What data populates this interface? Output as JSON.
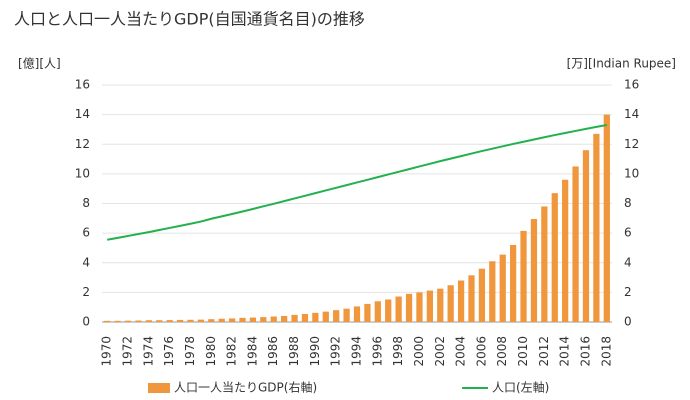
{
  "chart_data": {
    "type": "bar+line",
    "title": "人口と人口一人当たりGDP(自国通貨名目)の推移",
    "y_label": "[億][人]",
    "y2_label": "[万][Indian Rupee]",
    "categories": [
      "1970",
      null,
      "1972",
      null,
      "1974",
      null,
      "1976",
      null,
      "1978",
      null,
      "1980",
      null,
      "1982",
      null,
      "1984",
      null,
      "1986",
      null,
      "1988",
      null,
      "1990",
      null,
      "1992",
      null,
      "1994",
      null,
      "1996",
      null,
      "1998",
      null,
      "2000",
      null,
      "2002",
      null,
      "2004",
      null,
      "2006",
      null,
      "2008",
      null,
      "2010",
      null,
      "2012",
      null,
      "2014",
      null,
      "2016",
      null,
      "2018"
    ],
    "series": [
      {
        "name": "人口一人当たりGDP(右軸)",
        "color": "#f0963c",
        "axis": "y2",
        "kind": "bar",
        "values": [
          0.08,
          0.08,
          0.09,
          0.1,
          0.12,
          0.12,
          0.13,
          0.14,
          0.15,
          0.16,
          0.19,
          0.22,
          0.24,
          0.28,
          0.3,
          0.33,
          0.37,
          0.41,
          0.48,
          0.54,
          0.62,
          0.7,
          0.8,
          0.9,
          1.05,
          1.22,
          1.4,
          1.52,
          1.72,
          1.9,
          2.0,
          2.12,
          2.25,
          2.48,
          2.8,
          3.15,
          3.6,
          4.1,
          4.55,
          5.2,
          6.15,
          6.95,
          7.8,
          8.7,
          9.6,
          10.5,
          11.6,
          12.7,
          14.0
        ]
      },
      {
        "name": "人口(左軸)",
        "color": "#22b14c",
        "axis": "y",
        "kind": "line",
        "values": [
          5.55,
          5.68,
          5.81,
          5.94,
          6.07,
          6.21,
          6.35,
          6.49,
          6.63,
          6.78,
          6.97,
          7.13,
          7.29,
          7.46,
          7.63,
          7.81,
          7.98,
          8.16,
          8.34,
          8.52,
          8.7,
          8.88,
          9.06,
          9.24,
          9.42,
          9.6,
          9.78,
          9.96,
          10.14,
          10.32,
          10.5,
          10.68,
          10.86,
          11.03,
          11.2,
          11.37,
          11.54,
          11.7,
          11.86,
          12.02,
          12.17,
          12.32,
          12.47,
          12.62,
          12.76,
          12.9,
          13.04,
          13.17,
          13.3
        ]
      }
    ],
    "ylim": [
      0,
      16
    ],
    "yticks": [
      0,
      2,
      4,
      6,
      8,
      10,
      12,
      14,
      16
    ],
    "y2lim": [
      0,
      16
    ],
    "y2ticks": [
      0,
      2,
      4,
      6,
      8,
      10,
      12,
      14,
      16
    ]
  }
}
